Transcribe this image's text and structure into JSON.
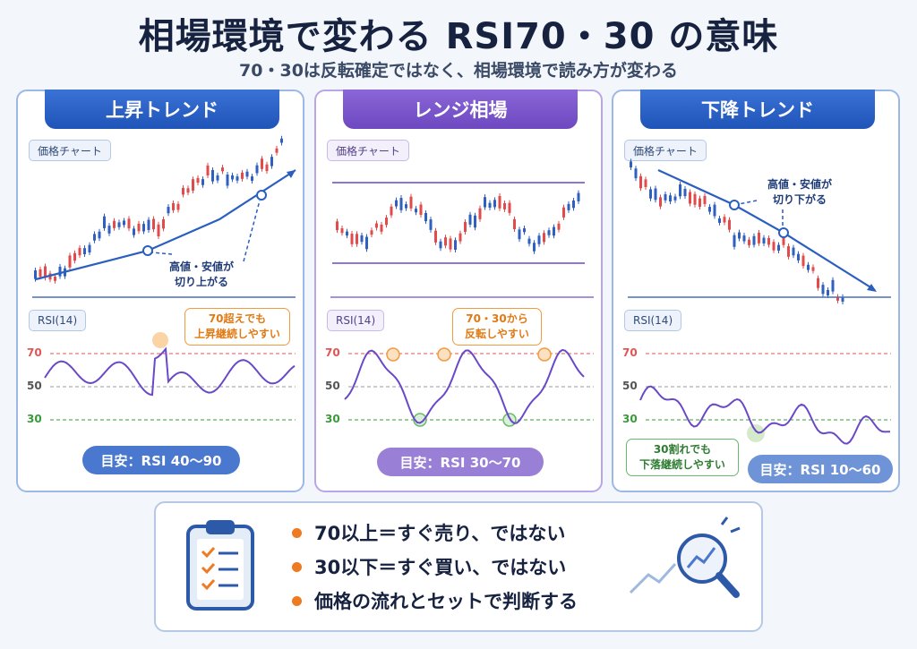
{
  "title": "相場環境で変わる RSI70・30 の意味",
  "subtitle": "70・30は反転確定ではなく、相場環境で読み方が変わる",
  "panels": [
    {
      "header": "上昇トレンド",
      "price_tag": "価格チャート",
      "rsi_tag": "RSI(14)",
      "annotation": "高値・安値が\n切り上がる",
      "callout": "70超えでも\n上昇継続しやすい",
      "gauge": "目安：RSI 40〜90",
      "levels": [
        "70",
        "50",
        "30"
      ]
    },
    {
      "header": "レンジ相場",
      "price_tag": "価格チャート",
      "rsi_tag": "RSI(14)",
      "callout": "70・30から\n反転しやすい",
      "gauge": "目安：RSI 30〜70",
      "levels": [
        "70",
        "50",
        "30"
      ]
    },
    {
      "header": "下降トレンド",
      "price_tag": "価格チャート",
      "rsi_tag": "RSI(14)",
      "annotation": "高値・安値が\n切り下がる",
      "callout": "30割れでも\n下落継続しやすい",
      "gauge": "目安：RSI 10〜60",
      "levels": [
        "70",
        "50",
        "30"
      ]
    }
  ],
  "summary": [
    "70以上＝すぐ売り、ではない",
    "30以下＝すぐ買い、ではない",
    "価格の流れとセットで判断する"
  ],
  "colors": {
    "up_candle": "#e24b4b",
    "down_candle": "#2f5fbf",
    "rsi_line": "#6a49c8",
    "level70": "#e05555",
    "level30": "#3a9a3a",
    "accent_orange": "#ee7a22"
  },
  "icons": [
    "clipboard-checklist-icon",
    "magnifier-chart-icon"
  ]
}
